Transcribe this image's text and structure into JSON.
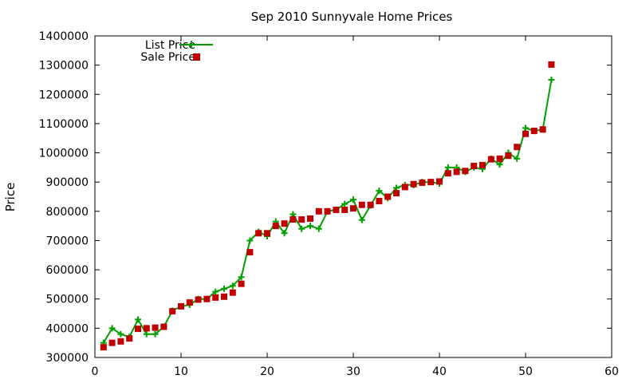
{
  "chart_data": {
    "type": "line",
    "title": "Sep 2010 Sunnyvale Home Prices",
    "xlabel": "",
    "ylabel": "Price",
    "xlim": [
      0,
      60
    ],
    "ylim": [
      300000,
      1400000
    ],
    "x_ticks": [
      0,
      10,
      20,
      30,
      40,
      50,
      60
    ],
    "y_ticks": [
      300000,
      400000,
      500000,
      600000,
      700000,
      800000,
      900000,
      1000000,
      1100000,
      1200000,
      1300000,
      1400000
    ],
    "grid": false,
    "legend_position": "top-left",
    "series": [
      {
        "name": "List Price",
        "style": "line-plus",
        "color": "#00a000",
        "x": [
          1,
          2,
          3,
          4,
          5,
          6,
          7,
          8,
          9,
          10,
          11,
          12,
          13,
          14,
          15,
          16,
          17,
          18,
          19,
          20,
          21,
          22,
          23,
          24,
          25,
          26,
          27,
          28,
          29,
          30,
          31,
          32,
          33,
          34,
          35,
          36,
          37,
          38,
          39,
          40,
          41,
          42,
          43,
          44,
          45,
          46,
          47,
          48,
          49,
          50,
          51,
          52,
          53
        ],
        "values": [
          350000,
          400000,
          380000,
          370000,
          430000,
          380000,
          380000,
          405000,
          460000,
          475000,
          480000,
          500000,
          500000,
          525000,
          535000,
          545000,
          575000,
          700000,
          730000,
          715000,
          765000,
          725000,
          790000,
          740000,
          750000,
          740000,
          800000,
          805000,
          825000,
          840000,
          770000,
          820000,
          870000,
          845000,
          880000,
          890000,
          890000,
          900000,
          900000,
          895000,
          950000,
          950000,
          935000,
          950000,
          945000,
          980000,
          960000,
          1000000,
          980000,
          1085000,
          1075000,
          1080000,
          1250000
        ]
      },
      {
        "name": "Sale Price",
        "style": "points-square",
        "color": "#c00000",
        "x": [
          1,
          2,
          3,
          4,
          5,
          6,
          7,
          8,
          9,
          10,
          11,
          12,
          13,
          14,
          15,
          16,
          17,
          18,
          19,
          20,
          21,
          22,
          23,
          24,
          25,
          26,
          27,
          28,
          29,
          30,
          31,
          32,
          33,
          34,
          35,
          36,
          37,
          38,
          39,
          40,
          41,
          42,
          43,
          44,
          45,
          46,
          47,
          48,
          49,
          50,
          51,
          52,
          53
        ],
        "values": [
          335000,
          350000,
          355000,
          365000,
          398000,
          400000,
          402000,
          405000,
          458000,
          475000,
          488000,
          498000,
          500000,
          505000,
          508000,
          522000,
          552000,
          660000,
          725000,
          725000,
          750000,
          758000,
          772000,
          772000,
          775000,
          800000,
          800000,
          805000,
          805000,
          810000,
          822000,
          822000,
          835000,
          850000,
          862000,
          883000,
          893000,
          898000,
          900000,
          902000,
          930000,
          935000,
          938000,
          955000,
          958000,
          978000,
          980000,
          990000,
          1020000,
          1065000,
          1075000,
          1080000,
          1302000
        ]
      }
    ]
  }
}
